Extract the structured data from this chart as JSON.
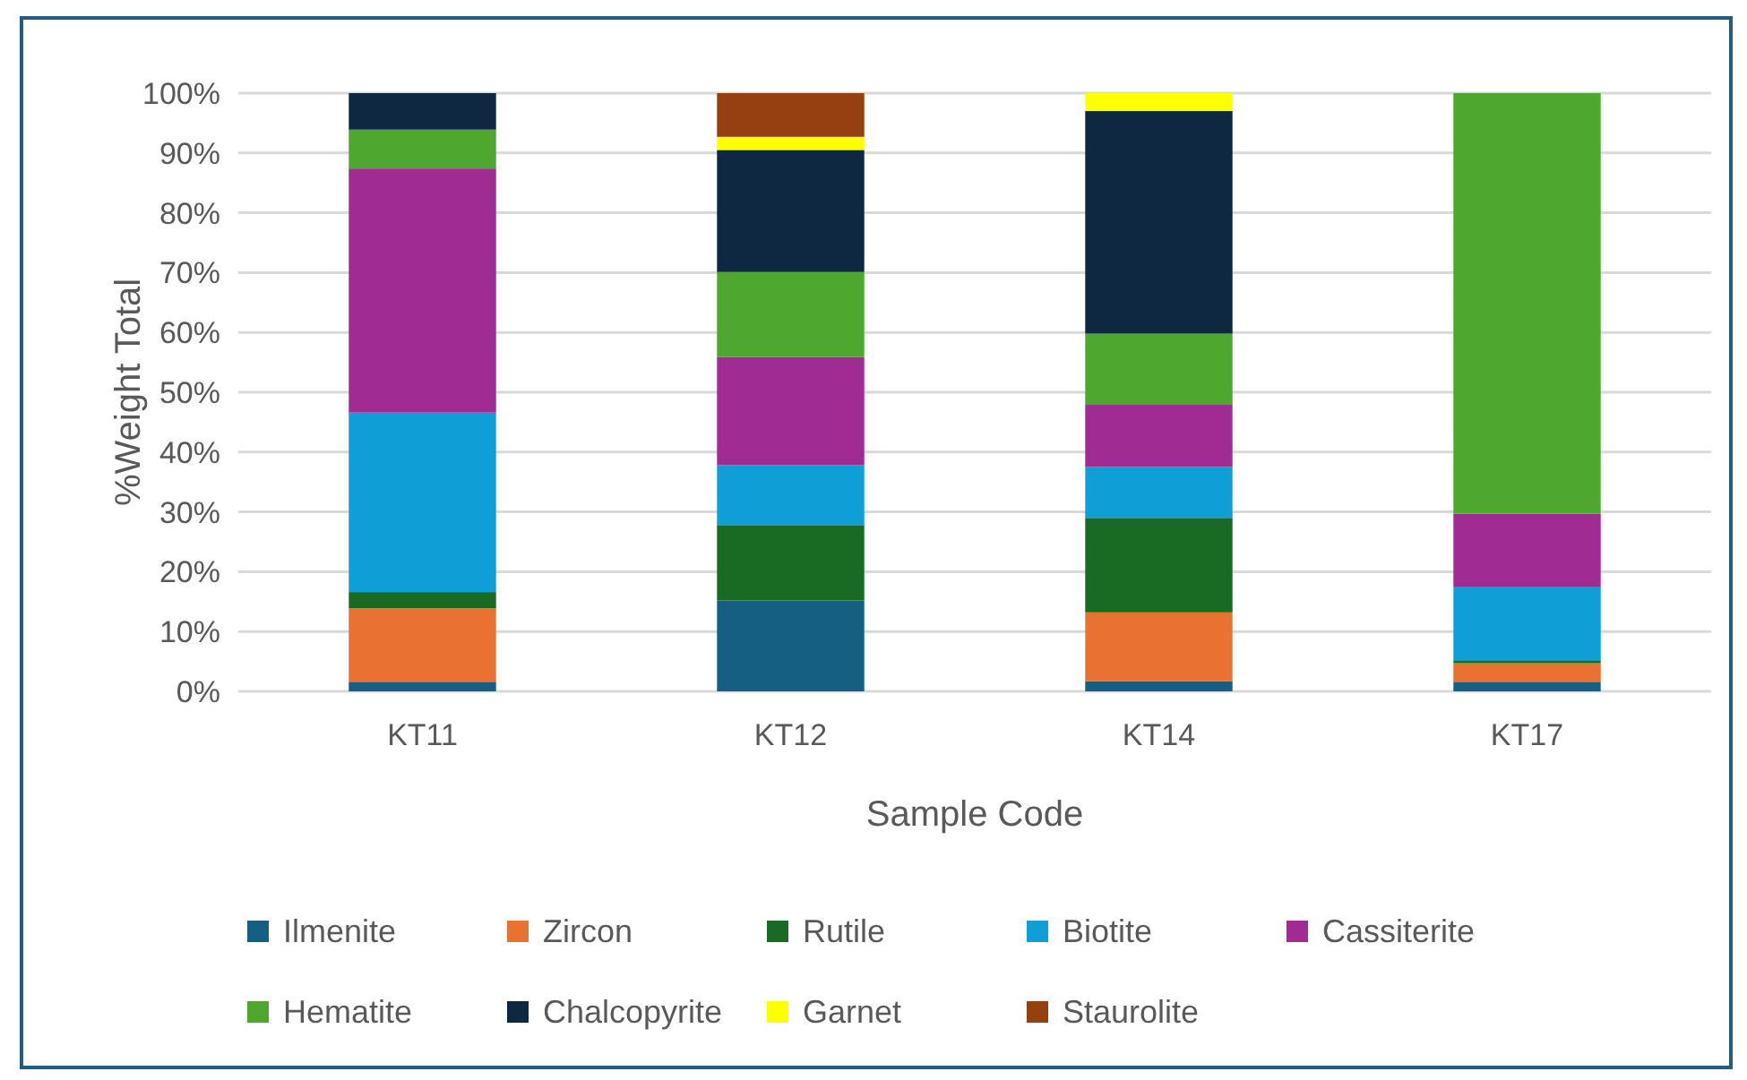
{
  "chart_data": {
    "type": "bar",
    "stacked": true,
    "xlabel": "Sample Code",
    "ylabel": "%Weight Total",
    "categories": [
      "KT11",
      "KT12",
      "KT14",
      "KT17"
    ],
    "ylim": [
      0,
      100
    ],
    "yticks": [
      {
        "value": 0,
        "label": "0%"
      },
      {
        "value": 10,
        "label": "10%"
      },
      {
        "value": 20,
        "label": "20%"
      },
      {
        "value": 30,
        "label": "30%"
      },
      {
        "value": 40,
        "label": "40%"
      },
      {
        "value": 50,
        "label": "50%"
      },
      {
        "value": 60,
        "label": "60%"
      },
      {
        "value": 70,
        "label": "70%"
      },
      {
        "value": 80,
        "label": "80%"
      },
      {
        "value": 90,
        "label": "90%"
      },
      {
        "value": 100,
        "label": "100%"
      }
    ],
    "grid": "y",
    "legend": "bottom",
    "series": [
      {
        "name": "Ilmenite",
        "color": "#156082",
        "values": [
          1.6,
          15.2,
          1.7,
          1.6
        ]
      },
      {
        "name": "Zircon",
        "color": "#e97132",
        "values": [
          12.3,
          0,
          11.5,
          3.1
        ]
      },
      {
        "name": "Rutile",
        "color": "#196b24",
        "values": [
          2.7,
          12.6,
          15.8,
          0.5
        ]
      },
      {
        "name": "Biotite",
        "color": "#0f9ed5",
        "values": [
          30,
          10,
          8.5,
          12.2
        ]
      },
      {
        "name": "Cassiterite",
        "color": "#a02b93",
        "values": [
          40.8,
          18.1,
          10.4,
          12.3
        ]
      },
      {
        "name": "Hematite",
        "color": "#4ea72e",
        "values": [
          6.5,
          14.2,
          11.9,
          70.3
        ]
      },
      {
        "name": "Chalcopyrite",
        "color": "#0e2841",
        "values": [
          6.1,
          20.4,
          37.2,
          0
        ]
      },
      {
        "name": "Garnet",
        "color": "#ffff00",
        "values": [
          0,
          2.2,
          3,
          0
        ]
      },
      {
        "name": "Staurolite",
        "color": "#963f10",
        "values": [
          0,
          7.3,
          0,
          0
        ]
      }
    ]
  }
}
